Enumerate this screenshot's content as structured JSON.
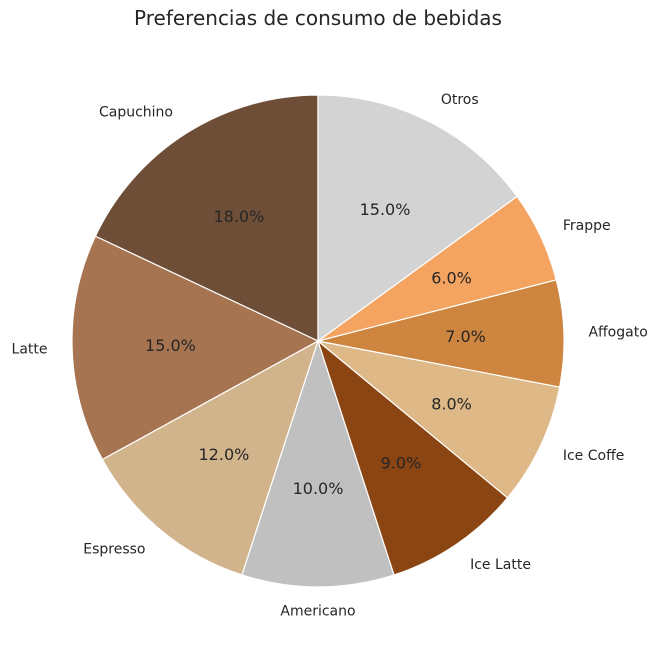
{
  "chart_data": {
    "type": "pie",
    "title": "Preferencias de consumo de bebidas",
    "start_angle_deg": 90,
    "direction": "counterclockwise",
    "categories": [
      "Capuchino",
      "Latte",
      "Espresso",
      "Americano",
      "Ice Latte",
      "Ice Coffe",
      "Affogato",
      "Frappe",
      "Otros"
    ],
    "values": [
      18,
      15,
      12,
      10,
      9,
      8,
      7,
      6,
      15
    ],
    "percent_labels": [
      "18.0%",
      "15.0%",
      "12.0%",
      "10.0%",
      "9.0%",
      "8.0%",
      "7.0%",
      "6.0%",
      "15.0%"
    ],
    "colors": [
      "#6f4e37",
      "#a67450",
      "#d2b48c",
      "#c0c0c0",
      "#8b4513",
      "#deb887",
      "#cd853f",
      "#f4a460",
      "#d3d3d3"
    ],
    "legend": "none"
  }
}
